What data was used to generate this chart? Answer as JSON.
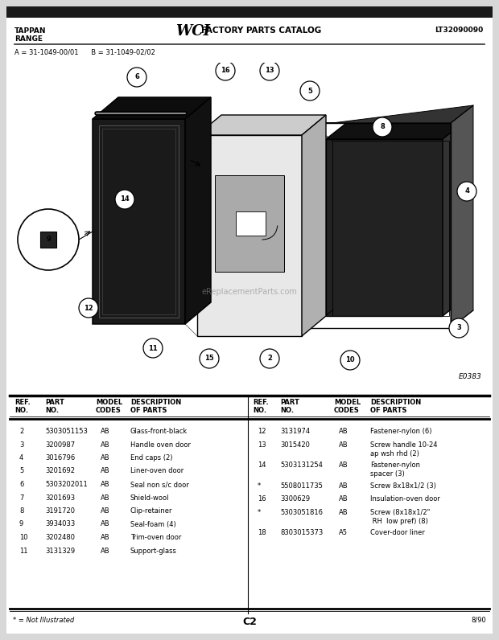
{
  "title_left": "TAPPAN\nRANGE",
  "title_right": "LT32090090",
  "model_line": "A = 31-1049-00/01      B = 31-1049-02/02",
  "diagram_label": "E0383",
  "watermark": "eReplacementParts.com",
  "footer_left": "* = Not Illustrated",
  "footer_center": "C2",
  "footer_right": "8/90",
  "bg_color": "#d8d8d8",
  "page_bg": "#ffffff",
  "left_parts": [
    [
      "2",
      "5303051153",
      "AB",
      "Glass-front-black"
    ],
    [
      "3",
      "3200987",
      "AB",
      "Handle oven door"
    ],
    [
      "4",
      "3016796",
      "AB",
      "End caps (2)"
    ],
    [
      "5",
      "3201692",
      "AB",
      "Liner-oven door"
    ],
    [
      "6",
      "5303202011",
      "AB",
      "Seal non s/c door"
    ],
    [
      "7",
      "3201693",
      "AB",
      "Shield-wool"
    ],
    [
      "8",
      "3191720",
      "AB",
      "Clip-retainer"
    ],
    [
      "9",
      "3934033",
      "AB",
      "Seal-foam (4)"
    ],
    [
      "10",
      "3202480",
      "AB",
      "Trim-oven door"
    ],
    [
      "11",
      "3131329",
      "AB",
      "Support-glass"
    ]
  ],
  "right_parts": [
    [
      "12",
      "3131974",
      "AB",
      "Fastener-nylon (6)"
    ],
    [
      "13",
      "3015420",
      "AB",
      "Screw handle 10-24\nap wsh rhd (2)"
    ],
    [
      "14",
      "5303131254",
      "AB",
      "Fastener-nylon\nspacer (3)"
    ],
    [
      "*",
      "5508011735",
      "AB",
      "Screw 8x18x1/2 (3)"
    ],
    [
      "16",
      "3300629",
      "AB",
      "Insulation-oven door"
    ],
    [
      "*",
      "5303051816",
      "AB",
      "Screw (8x18x1/2\"\n RH  low pref) (8)"
    ],
    [
      "18",
      "8303015373",
      "A5",
      "Cover-door liner"
    ]
  ]
}
